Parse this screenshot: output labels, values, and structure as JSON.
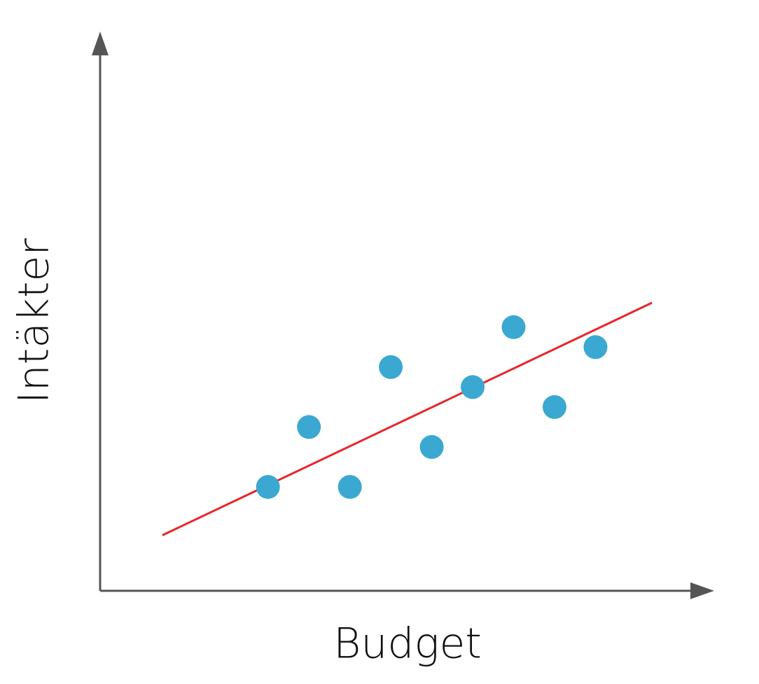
{
  "chart_data": {
    "type": "scatter",
    "x_label": "Budget",
    "y_label": "Intäkter",
    "x": [
      4.1,
      5.1,
      6.1,
      7.1,
      8.1,
      9.1,
      10.1,
      11.1,
      12.1
    ],
    "values": [
      2.6,
      4.1,
      2.6,
      5.6,
      3.6,
      5.1,
      6.6,
      4.6,
      6.1
    ],
    "color": "#3aa8d0",
    "xlim": [
      0,
      15
    ],
    "ylim": [
      0,
      14
    ],
    "axis_color": "#555555",
    "trendline": {
      "x": [
        1.52,
        13.48
      ],
      "y": [
        1.39,
        7.21
      ],
      "color": "#e8262b"
    }
  }
}
